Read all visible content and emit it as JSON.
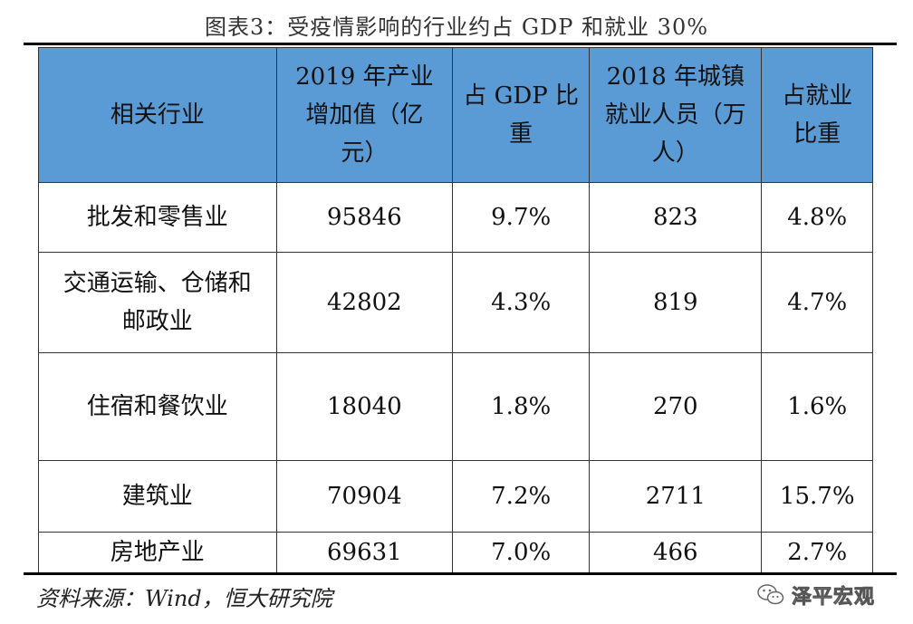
{
  "title": "图表3：受疫情影响的行业约占 GDP 和就业 30%",
  "table": {
    "headers": [
      "相关行业",
      "2019 年产业增加值（亿元）",
      "占 GDP 比重",
      "2018 年城镇就业人员（万人）",
      "占就业比重"
    ],
    "header_lines": [
      [
        "相关行业"
      ],
      [
        "2019 年产业",
        "增加值（亿",
        "元）"
      ],
      [
        "占 GDP 比",
        "重"
      ],
      [
        "2018 年城镇",
        "就业人员（万",
        "人）"
      ],
      [
        "占就业",
        "比重"
      ]
    ],
    "rows": [
      {
        "industry_lines": [
          "批发和零售业"
        ],
        "value": "95846",
        "gdp_share": "9.7%",
        "employment": "823",
        "employment_share": "4.8%"
      },
      {
        "industry_lines": [
          "交通运输、仓储和",
          "邮政业"
        ],
        "value": "42802",
        "gdp_share": "4.3%",
        "employment": "819",
        "employment_share": "4.7%"
      },
      {
        "industry_lines": [
          "住宿和餐饮业"
        ],
        "value": "18040",
        "gdp_share": "1.8%",
        "employment": "270",
        "employment_share": "1.6%"
      },
      {
        "industry_lines": [
          "建筑业"
        ],
        "value": "70904",
        "gdp_share": "7.2%",
        "employment": "2711",
        "employment_share": "15.7%"
      },
      {
        "industry_lines": [
          "房地产业"
        ],
        "value": "69631",
        "gdp_share": "7.0%",
        "employment": "466",
        "employment_share": "2.7%"
      }
    ]
  },
  "source": "资料来源：Wind，恒大研究院",
  "watermark": {
    "text": "泽平宏观",
    "icon": "wechat-icon"
  },
  "colors": {
    "header_bg": "#5b9bd5"
  }
}
